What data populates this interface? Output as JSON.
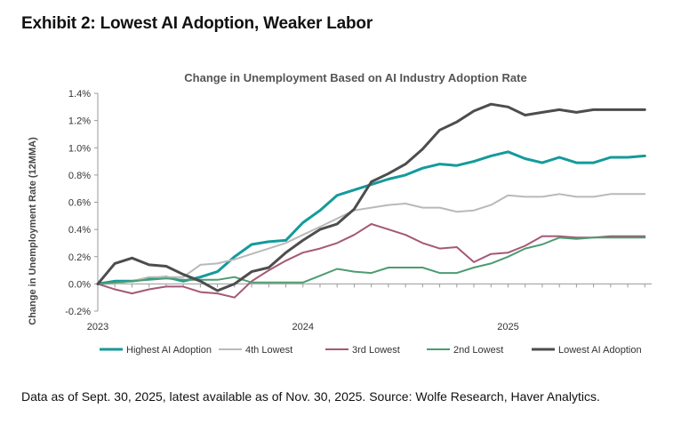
{
  "exhibit_title": "Exhibit 2: Lowest AI Adoption, Weaker Labor",
  "footnote": "Data as of Sept. 30, 2025, latest available as of Nov. 30, 2025. Source: Wolfe Research, Haver Analytics.",
  "colors": {
    "highest": "#149a9c",
    "fourth": "#b9b9b9",
    "third": "#a45876",
    "second": "#4c9c70",
    "lowest": "#4d4d4d",
    "axis": "#9a9a9a",
    "title": "#555555"
  },
  "chart_data": {
    "type": "line",
    "title": "Change in Unemployment Based on AI Industry Adoption Rate",
    "xlabel": "",
    "ylabel": "Change in Unemployment Rate (12MMA)",
    "ylim": [
      -0.2,
      1.4
    ],
    "yticks": [
      -0.2,
      0.0,
      0.2,
      0.4,
      0.6,
      0.8,
      1.0,
      1.2,
      1.4
    ],
    "ytick_labels": [
      "-0.2%",
      "0.0%",
      "0.2%",
      "0.4%",
      "0.6%",
      "0.8%",
      "1.0%",
      "1.2%",
      "1.4%"
    ],
    "xticks": [
      "2023",
      "2024",
      "2025"
    ],
    "x": [
      "2023-01",
      "2023-02",
      "2023-03",
      "2023-04",
      "2023-05",
      "2023-06",
      "2023-07",
      "2023-08",
      "2023-09",
      "2023-10",
      "2023-11",
      "2023-12",
      "2024-01",
      "2024-02",
      "2024-03",
      "2024-04",
      "2024-05",
      "2024-06",
      "2024-07",
      "2024-08",
      "2024-09",
      "2024-10",
      "2024-11",
      "2024-12",
      "2025-01",
      "2025-02",
      "2025-03",
      "2025-04",
      "2025-05",
      "2025-06",
      "2025-07",
      "2025-08",
      "2025-09"
    ],
    "legend_position": "bottom",
    "grid": false,
    "series": [
      {
        "name": "Highest AI Adoption",
        "color_key": "highest",
        "width": 3,
        "values": [
          0.0,
          0.02,
          0.02,
          0.04,
          0.05,
          0.02,
          0.05,
          0.09,
          0.2,
          0.29,
          0.31,
          0.32,
          0.45,
          0.54,
          0.65,
          0.69,
          0.73,
          0.77,
          0.8,
          0.85,
          0.88,
          0.87,
          0.9,
          0.94,
          0.97,
          0.92,
          0.89,
          0.93,
          0.89,
          0.89,
          0.93,
          0.93,
          0.94
        ]
      },
      {
        "name": "4th Lowest",
        "color_key": "fourth",
        "width": 2,
        "values": [
          0.0,
          0.0,
          0.02,
          0.05,
          0.05,
          0.05,
          0.14,
          0.15,
          0.18,
          0.22,
          0.26,
          0.3,
          0.36,
          0.42,
          0.48,
          0.54,
          0.56,
          0.58,
          0.59,
          0.56,
          0.56,
          0.53,
          0.54,
          0.58,
          0.65,
          0.64,
          0.64,
          0.66,
          0.64,
          0.64,
          0.66,
          0.66,
          0.66
        ]
      },
      {
        "name": "3rd Lowest",
        "color_key": "third",
        "width": 2,
        "values": [
          0.0,
          -0.04,
          -0.07,
          -0.04,
          -0.02,
          -0.02,
          -0.06,
          -0.07,
          -0.1,
          0.02,
          0.1,
          0.17,
          0.23,
          0.26,
          0.3,
          0.36,
          0.44,
          0.4,
          0.36,
          0.3,
          0.26,
          0.27,
          0.16,
          0.22,
          0.23,
          0.28,
          0.35,
          0.35,
          0.34,
          0.34,
          0.35,
          0.35,
          0.35
        ]
      },
      {
        "name": "2nd Lowest",
        "color_key": "second",
        "width": 2,
        "values": [
          0.0,
          0.01,
          0.02,
          0.03,
          0.04,
          0.03,
          0.03,
          0.03,
          0.05,
          0.01,
          0.01,
          0.01,
          0.01,
          0.06,
          0.11,
          0.09,
          0.08,
          0.12,
          0.12,
          0.12,
          0.08,
          0.08,
          0.12,
          0.15,
          0.2,
          0.26,
          0.29,
          0.34,
          0.33,
          0.34,
          0.34,
          0.34,
          0.34
        ]
      },
      {
        "name": "Lowest AI Adoption",
        "color_key": "lowest",
        "width": 3,
        "values": [
          0.0,
          0.15,
          0.19,
          0.14,
          0.13,
          0.07,
          0.02,
          -0.05,
          0.0,
          0.09,
          0.12,
          0.23,
          0.32,
          0.4,
          0.44,
          0.55,
          0.75,
          0.81,
          0.88,
          0.99,
          1.13,
          1.19,
          1.27,
          1.32,
          1.3,
          1.24,
          1.26,
          1.28,
          1.26,
          1.28,
          1.28,
          1.28,
          1.28
        ]
      }
    ]
  }
}
